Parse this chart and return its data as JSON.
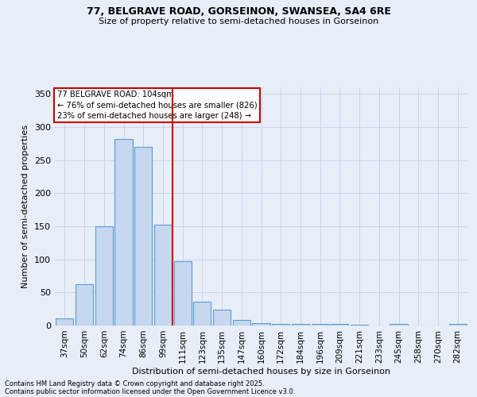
{
  "title1": "77, BELGRAVE ROAD, GORSEINON, SWANSEA, SA4 6RE",
  "title2": "Size of property relative to semi-detached houses in Gorseinon",
  "xlabel": "Distribution of semi-detached houses by size in Gorseinon",
  "ylabel": "Number of semi-detached properties",
  "categories": [
    "37sqm",
    "50sqm",
    "62sqm",
    "74sqm",
    "86sqm",
    "99sqm",
    "111sqm",
    "123sqm",
    "135sqm",
    "147sqm",
    "160sqm",
    "172sqm",
    "184sqm",
    "196sqm",
    "209sqm",
    "221sqm",
    "233sqm",
    "245sqm",
    "258sqm",
    "270sqm",
    "282sqm"
  ],
  "values": [
    11,
    63,
    150,
    282,
    270,
    152,
    97,
    36,
    24,
    8,
    4,
    3,
    3,
    2,
    2,
    1,
    0,
    2,
    0,
    0,
    3
  ],
  "bar_color": "#c5d8f0",
  "bar_edge_color": "#5b9bd5",
  "vline_x": 5.5,
  "vline_color": "#cc0000",
  "annotation_title": "77 BELGRAVE ROAD: 104sqm",
  "annotation_line1": "← 76% of semi-detached houses are smaller (826)",
  "annotation_line2": "23% of semi-detached houses are larger (248) →",
  "annotation_box_color": "white",
  "annotation_box_edge": "#cc0000",
  "footnote1": "Contains HM Land Registry data © Crown copyright and database right 2025.",
  "footnote2": "Contains public sector information licensed under the Open Government Licence v3.0.",
  "ylim": [
    0,
    360
  ],
  "yticks": [
    0,
    50,
    100,
    150,
    200,
    250,
    300,
    350
  ],
  "bg_color": "#e8eef8",
  "plot_bg_color": "#e8eef8",
  "grid_color": "#c8d4e8"
}
